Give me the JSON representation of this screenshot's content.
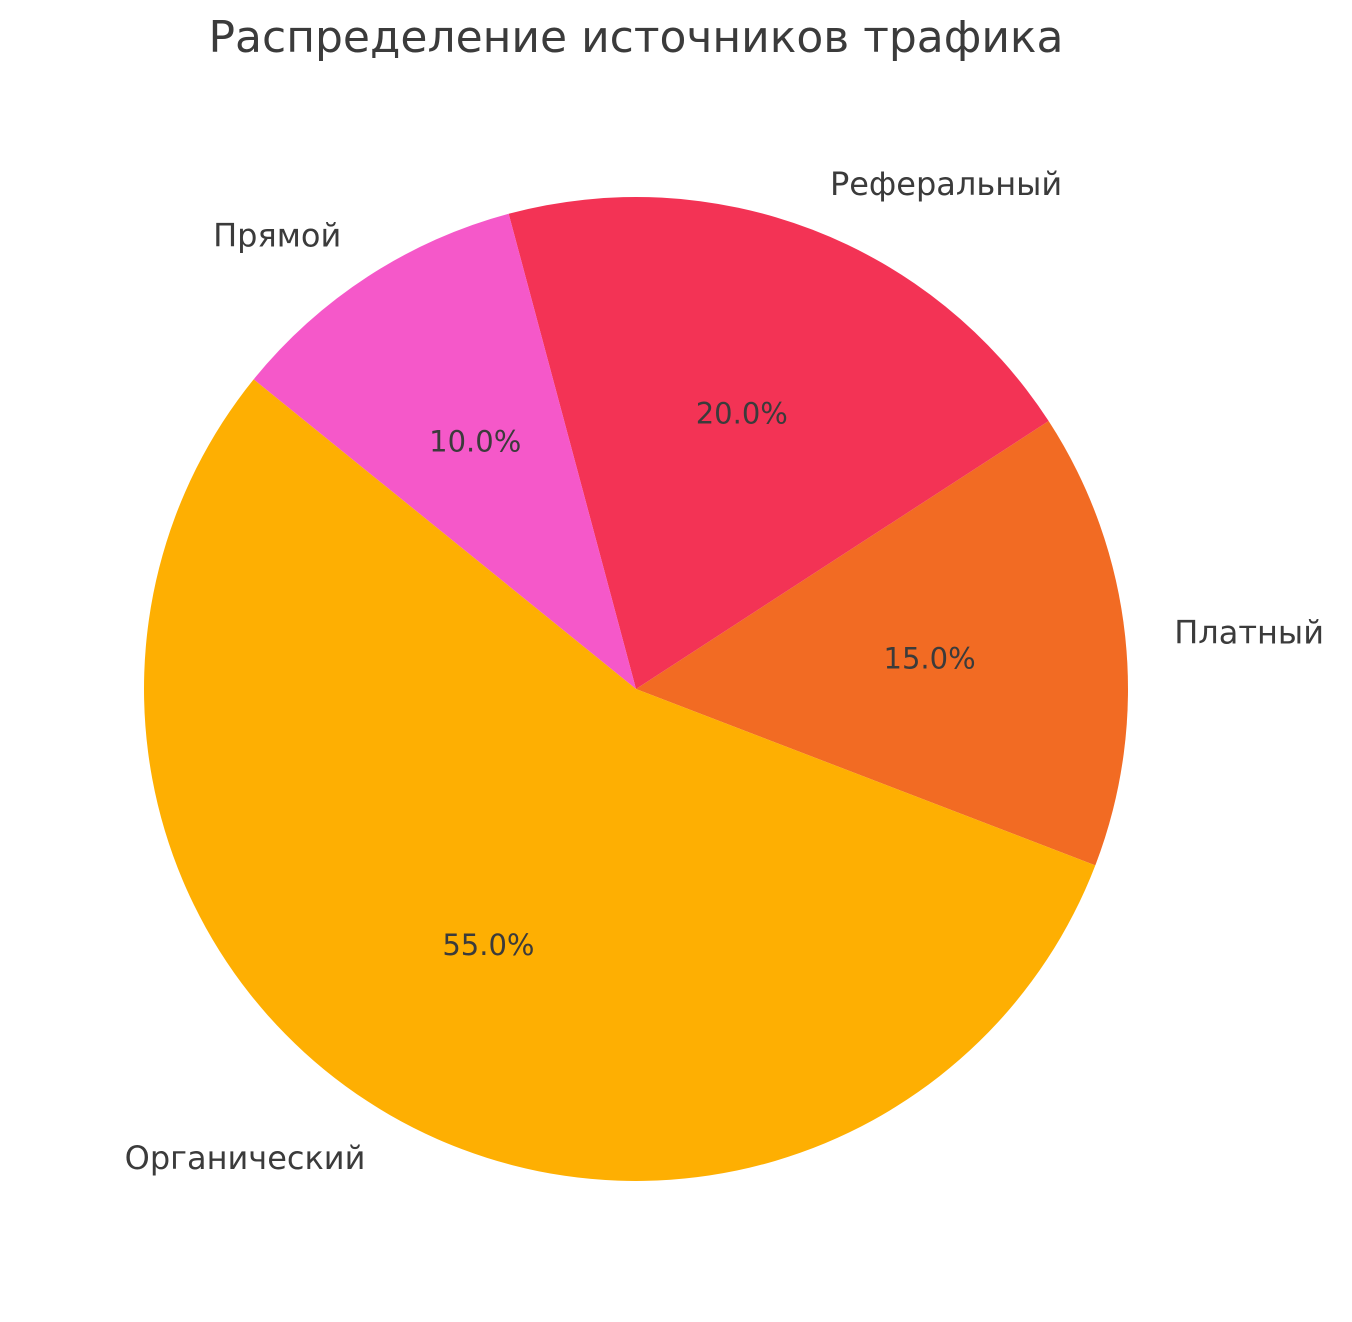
{
  "chart_data": {
    "type": "pie",
    "title": "Распределение источников трафика",
    "title_color": "#3b3b3b",
    "text_color": "#3b3b3b",
    "background_color": "#ffffff",
    "start_angle_deg": -21,
    "direction": "counterclockwise",
    "label_distance": 1.1,
    "pct_distance": 0.6,
    "legend": "none",
    "slices": [
      {
        "id": "paid",
        "label": "Платный",
        "value": 15,
        "pct_label": "15.0%",
        "color": "#F26B23"
      },
      {
        "id": "referral",
        "label": "Реферальный",
        "value": 20,
        "pct_label": "20.0%",
        "color": "#F33355"
      },
      {
        "id": "direct",
        "label": "Прямой",
        "value": 10,
        "pct_label": "10.0%",
        "color": "#F558C9"
      },
      {
        "id": "organic",
        "label": "Органический",
        "value": 55,
        "pct_label": "55.0%",
        "color": "#FEAF02"
      }
    ]
  }
}
